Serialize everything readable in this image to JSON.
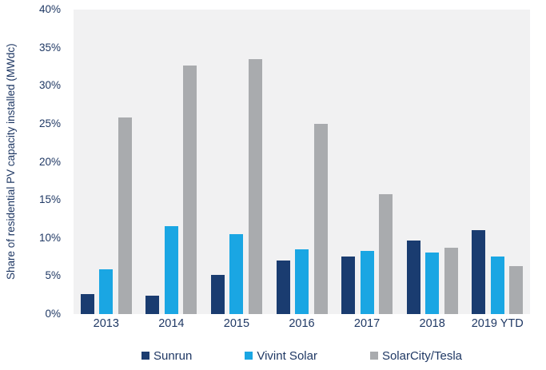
{
  "colors": {
    "text": "#1f3864",
    "plot_background": "#f1f1f2",
    "page_background": "#ffffff"
  },
  "y_axis": {
    "title": "Share of residential PV capacity installed (MWdc)",
    "tick_labels": [
      "0%",
      "5%",
      "10%",
      "15%",
      "20%",
      "25%",
      "30%",
      "35%",
      "40%"
    ]
  },
  "chart_data": {
    "type": "bar",
    "title": "",
    "xlabel": "",
    "ylabel": "Share of residential PV capacity installed (MWdc)",
    "categories": [
      "2013",
      "2014",
      "2015",
      "2016",
      "2017",
      "2018",
      "2019 YTD"
    ],
    "series": [
      {
        "name": "Sunrun",
        "color": "#1a3c70",
        "values": [
          2.6,
          2.4,
          5.1,
          7.0,
          7.6,
          9.7,
          11.0
        ]
      },
      {
        "name": "Vivint Solar",
        "color": "#1aa6e3",
        "values": [
          5.9,
          11.6,
          10.5,
          8.5,
          8.3,
          8.1,
          7.6
        ]
      },
      {
        "name": "SolarCity/Tesla",
        "color": "#a9abae",
        "values": [
          25.8,
          32.7,
          33.5,
          25.0,
          15.7,
          8.7,
          6.3
        ]
      }
    ],
    "ylim": [
      0,
      40
    ],
    "ytick_step": 5,
    "ytick_suffix": "%",
    "grid": false,
    "legend_position": "bottom"
  }
}
